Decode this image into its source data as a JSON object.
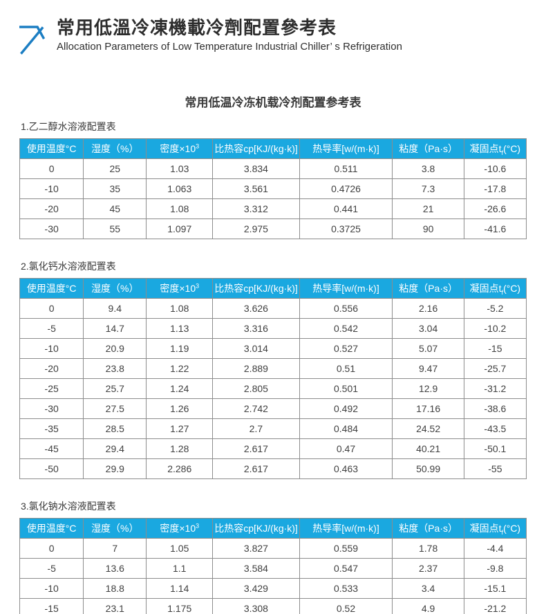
{
  "header": {
    "title": "常用低溫冷凍機載冷劑配置參考表",
    "subtitle": "Allocation Parameters of Low Temperature Industrial Chiller’ s Refrigeration",
    "logo_icon": "arrow-up-right-icon"
  },
  "document_title": "常用低温冷冻机载冷剂配置参考表",
  "colors": {
    "table_header_blue": "#1aa8e0",
    "logo_blue": "#1c7ec3",
    "table_border_gray": "#8c8c8c"
  },
  "columns": [
    {
      "label": "使用温度°C"
    },
    {
      "label": "湿度（%）"
    },
    {
      "label": "密度×10",
      "sup": "3"
    },
    {
      "label": "比热容cp[KJ/(kg·k)]"
    },
    {
      "label": "热导率[w/(m·k)]"
    },
    {
      "label": "粘度（Pa·s）"
    },
    {
      "label": "凝固点t",
      "sub": "f",
      "suffix": "(°C)"
    }
  ],
  "tables": [
    {
      "section_label": "1.乙二醇水溶液配置表",
      "rows": [
        [
          "0",
          "25",
          "1.03",
          "3.834",
          "0.511",
          "3.8",
          "-10.6"
        ],
        [
          "-10",
          "35",
          "1.063",
          "3.561",
          "0.4726",
          "7.3",
          "-17.8"
        ],
        [
          "-20",
          "45",
          "1.08",
          "3.312",
          "0.441",
          "21",
          "-26.6"
        ],
        [
          "-30",
          "55",
          "1.097",
          "2.975",
          "0.3725",
          "90",
          "-41.6"
        ]
      ]
    },
    {
      "section_label": "2.氯化钙水溶液配置表",
      "rows": [
        [
          "0",
          "9.4",
          "1.08",
          "3.626",
          "0.556",
          "2.16",
          "-5.2"
        ],
        [
          "-5",
          "14.7",
          "1.13",
          "3.316",
          "0.542",
          "3.04",
          "-10.2"
        ],
        [
          "-10",
          "20.9",
          "1.19",
          "3.014",
          "0.527",
          "5.07",
          "-15"
        ],
        [
          "-20",
          "23.8",
          "1.22",
          "2.889",
          "0.51",
          "9.47",
          "-25.7"
        ],
        [
          "-25",
          "25.7",
          "1.24",
          "2.805",
          "0.501",
          "12.9",
          "-31.2"
        ],
        [
          "-30",
          "27.5",
          "1.26",
          "2.742",
          "0.492",
          "17.16",
          "-38.6"
        ],
        [
          "-35",
          "28.5",
          "1.27",
          "2.7",
          "0.484",
          "24.52",
          "-43.5"
        ],
        [
          "-45",
          "29.4",
          "1.28",
          "2.617",
          "0.47",
          "40.21",
          "-50.1"
        ],
        [
          "-50",
          "29.9",
          "2.286",
          "2.617",
          "0.463",
          "50.99",
          "-55"
        ]
      ]
    },
    {
      "section_label": "3.氯化钠水溶液配置表",
      "rows": [
        [
          "0",
          "7",
          "1.05",
          "3.827",
          "0.559",
          "1.78",
          "-4.4"
        ],
        [
          "-5",
          "13.6",
          "1.1",
          "3.584",
          "0.547",
          "2.37",
          "-9.8"
        ],
        [
          "-10",
          "18.8",
          "1.14",
          "3.429",
          "0.533",
          "3.4",
          "-15.1"
        ],
        [
          "-15",
          "23.1",
          "1.175",
          "3.308",
          "0.52",
          "4.9",
          "-21.2"
        ]
      ]
    }
  ]
}
